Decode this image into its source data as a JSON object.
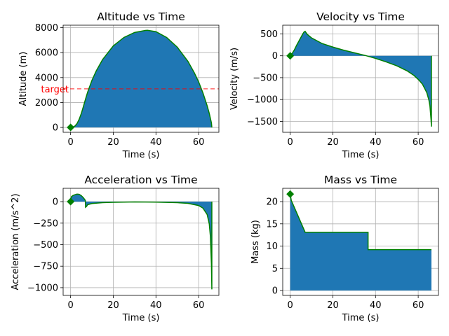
{
  "chart_data": [
    {
      "type": "area",
      "title": "Altitude vs Time",
      "xlabel": "Time (s)",
      "ylabel": "Altitude (m)",
      "xlim": [
        -3.5,
        69.5
      ],
      "ylim": [
        -390,
        8200
      ],
      "xticks": [
        0,
        20,
        40,
        60
      ],
      "yticks": [
        0,
        2000,
        4000,
        6000,
        8000
      ],
      "grid": true,
      "fill_color": "#1f77b4",
      "line_color": "#008000",
      "marker": {
        "x": 0,
        "y": 0,
        "shape": "diamond",
        "color": "#008000"
      },
      "reference_line": {
        "y": 3100,
        "label": "target",
        "color": "#ff0000",
        "style": "dashed"
      },
      "x": [
        0,
        1,
        2,
        3,
        4,
        5,
        6,
        7,
        8,
        10,
        12,
        15,
        20,
        25,
        30,
        35,
        36,
        40,
        45,
        50,
        55,
        58,
        60,
        62,
        64,
        65,
        66,
        66.2
      ],
      "values": [
        0,
        20,
        110,
        310,
        650,
        1110,
        1680,
        2280,
        2840,
        3780,
        4530,
        5450,
        6540,
        7220,
        7620,
        7780,
        7790,
        7680,
        7220,
        6440,
        5300,
        4380,
        3660,
        2780,
        1740,
        1120,
        370,
        0
      ]
    },
    {
      "type": "area",
      "title": "Velocity vs Time",
      "xlabel": "Time (s)",
      "ylabel": "Velocity (m/s)",
      "xlim": [
        -3.5,
        69.5
      ],
      "ylim": [
        -1750,
        700
      ],
      "xticks": [
        0,
        20,
        40,
        60
      ],
      "yticks": [
        -1500,
        -1000,
        -500,
        0,
        500
      ],
      "grid": true,
      "fill_color": "#1f77b4",
      "line_color": "#008000",
      "marker": {
        "x": 0,
        "y": 0,
        "shape": "diamond",
        "color": "#008000"
      },
      "x": [
        0,
        1,
        2,
        3,
        4,
        5,
        6,
        6.5,
        7,
        8,
        10,
        15,
        20,
        25,
        30,
        35,
        40,
        45,
        50,
        55,
        58,
        60,
        62,
        64,
        65,
        65.5,
        66,
        66.2,
        66.2
      ],
      "values": [
        0,
        60,
        140,
        240,
        330,
        420,
        510,
        545,
        560,
        490,
        410,
        280,
        200,
        130,
        70,
        10,
        -60,
        -140,
        -230,
        -350,
        -450,
        -540,
        -650,
        -840,
        -1010,
        -1150,
        -1450,
        -1620,
        0
      ]
    },
    {
      "type": "area",
      "title": "Acceleration vs Time",
      "xlabel": "Time (s)",
      "ylabel": "Acceleration (m/s^2)",
      "xlim": [
        -3.5,
        69.5
      ],
      "ylim": [
        -1090,
        155
      ],
      "xticks": [
        0,
        20,
        40,
        60
      ],
      "yticks": [
        -1000,
        -750,
        -500,
        -250,
        0
      ],
      "grid": true,
      "fill_color": "#1f77b4",
      "line_color": "#008000",
      "marker": {
        "x": 0,
        "y": 0,
        "shape": "diamond",
        "color": "#008000"
      },
      "x": [
        0,
        0.3,
        1,
        2,
        3,
        4,
        5,
        6,
        6.9,
        7,
        7.5,
        8,
        10,
        15,
        20,
        30,
        40,
        50,
        55,
        60,
        62,
        64,
        65,
        65.5,
        66,
        66.2,
        66.2
      ],
      "values": [
        0,
        55,
        70,
        80,
        88,
        85,
        70,
        45,
        15,
        -65,
        -55,
        -35,
        -22,
        -12,
        -8,
        -4,
        -6,
        -12,
        -20,
        -45,
        -75,
        -150,
        -260,
        -400,
        -720,
        -1020,
        0
      ]
    },
    {
      "type": "area",
      "title": "Mass vs Time",
      "xlabel": "Time (s)",
      "ylabel": "Mass (kg)",
      "xlim": [
        -3.5,
        69.5
      ],
      "ylim": [
        -1.1,
        23
      ],
      "xticks": [
        0,
        20,
        40,
        60
      ],
      "yticks": [
        0,
        5,
        10,
        15,
        20
      ],
      "grid": true,
      "fill_color": "#1f77b4",
      "line_color": "#008000",
      "marker": {
        "x": 0,
        "y": 21.7,
        "shape": "diamond",
        "color": "#008000"
      },
      "x": [
        0,
        0.5,
        7,
        36.5,
        36.5,
        66.2
      ],
      "values": [
        21.7,
        20.3,
        13.1,
        13.1,
        9.2,
        9.2
      ]
    }
  ]
}
